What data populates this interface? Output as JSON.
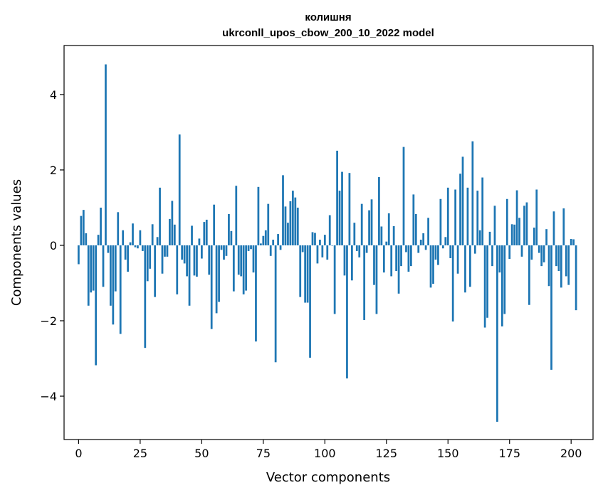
{
  "chart_data": {
    "type": "bar",
    "title": "колишня",
    "subtitle": "ukrconll_upos_cbow_200_10_2022 model",
    "xlabel": "Vector components",
    "ylabel": "Components values",
    "xlim": [
      -5.9,
      208.9
    ],
    "ylim": [
      -5.15,
      5.3
    ],
    "xticks": [
      0,
      25,
      50,
      75,
      100,
      125,
      150,
      175,
      200
    ],
    "yticks": [
      -4,
      -2,
      0,
      2,
      4
    ],
    "ytick_labels": [
      "−4",
      "−2",
      "0",
      "2",
      "4"
    ],
    "grid": false,
    "color": "#1f77b4",
    "values": [
      -0.5,
      0.78,
      0.94,
      0.32,
      -1.6,
      -1.25,
      -1.2,
      -3.18,
      0.28,
      1.0,
      -1.1,
      4.8,
      -0.2,
      -1.6,
      -2.1,
      -1.22,
      0.88,
      -2.35,
      0.4,
      -0.38,
      -0.7,
      0.08,
      0.58,
      -0.05,
      -0.08,
      0.4,
      -0.15,
      -2.72,
      -0.95,
      -0.62,
      0.56,
      -1.37,
      0.22,
      1.53,
      -0.75,
      -0.3,
      -0.3,
      0.7,
      1.18,
      0.55,
      -1.3,
      2.94,
      -0.38,
      -0.48,
      -0.82,
      -1.6,
      0.52,
      -0.8,
      -0.83,
      0.18,
      -0.35,
      0.62,
      0.68,
      -0.78,
      -2.22,
      1.08,
      -1.8,
      -1.5,
      -0.12,
      -0.38,
      -0.28,
      0.83,
      0.38,
      -1.22,
      1.58,
      -0.78,
      -0.82,
      -1.3,
      -1.2,
      -0.15,
      -0.1,
      -0.72,
      -2.55,
      1.55,
      0.05,
      0.25,
      0.4,
      1.1,
      -0.28,
      0.15,
      -3.1,
      0.3,
      -0.12,
      1.86,
      1.03,
      0.6,
      1.17,
      1.45,
      1.27,
      1.0,
      -1.37,
      -0.18,
      -1.52,
      -1.52,
      -2.98,
      0.35,
      0.33,
      -0.48,
      0.15,
      -0.32,
      0.28,
      -0.38,
      0.8,
      0.0,
      -1.82,
      2.51,
      1.45,
      1.95,
      -0.8,
      -3.53,
      1.92,
      -0.93,
      0.6,
      -0.15,
      -0.32,
      1.1,
      -1.98,
      -0.2,
      0.93,
      1.22,
      -1.05,
      -1.82,
      1.81,
      0.5,
      -0.72,
      0.1,
      0.85,
      -0.82,
      0.51,
      -0.68,
      -1.28,
      -0.55,
      2.61,
      -0.18,
      -0.7,
      -0.55,
      1.35,
      0.83,
      -0.2,
      0.15,
      0.32,
      -0.12,
      0.73,
      -1.12,
      -1.02,
      -0.38,
      -0.52,
      1.23,
      -0.08,
      0.22,
      1.53,
      -0.34,
      -2.02,
      1.48,
      -0.75,
      1.9,
      2.35,
      -1.25,
      1.53,
      -1.1,
      2.76,
      -0.22,
      1.45,
      0.4,
      1.8,
      -2.18,
      -1.92,
      0.36,
      -0.55,
      1.05,
      -4.68,
      -0.72,
      -2.15,
      -1.82,
      1.23,
      -0.36,
      0.56,
      0.55,
      1.46,
      0.73,
      -0.3,
      1.05,
      1.14,
      -1.58,
      -0.38,
      0.47,
      1.48,
      -0.2,
      -0.55,
      -0.45,
      0.43,
      -1.08,
      -3.3,
      0.9,
      -0.55,
      -0.68,
      -1.12,
      0.98,
      -0.82,
      -1.05,
      0.17,
      0.16,
      -1.72
    ]
  }
}
